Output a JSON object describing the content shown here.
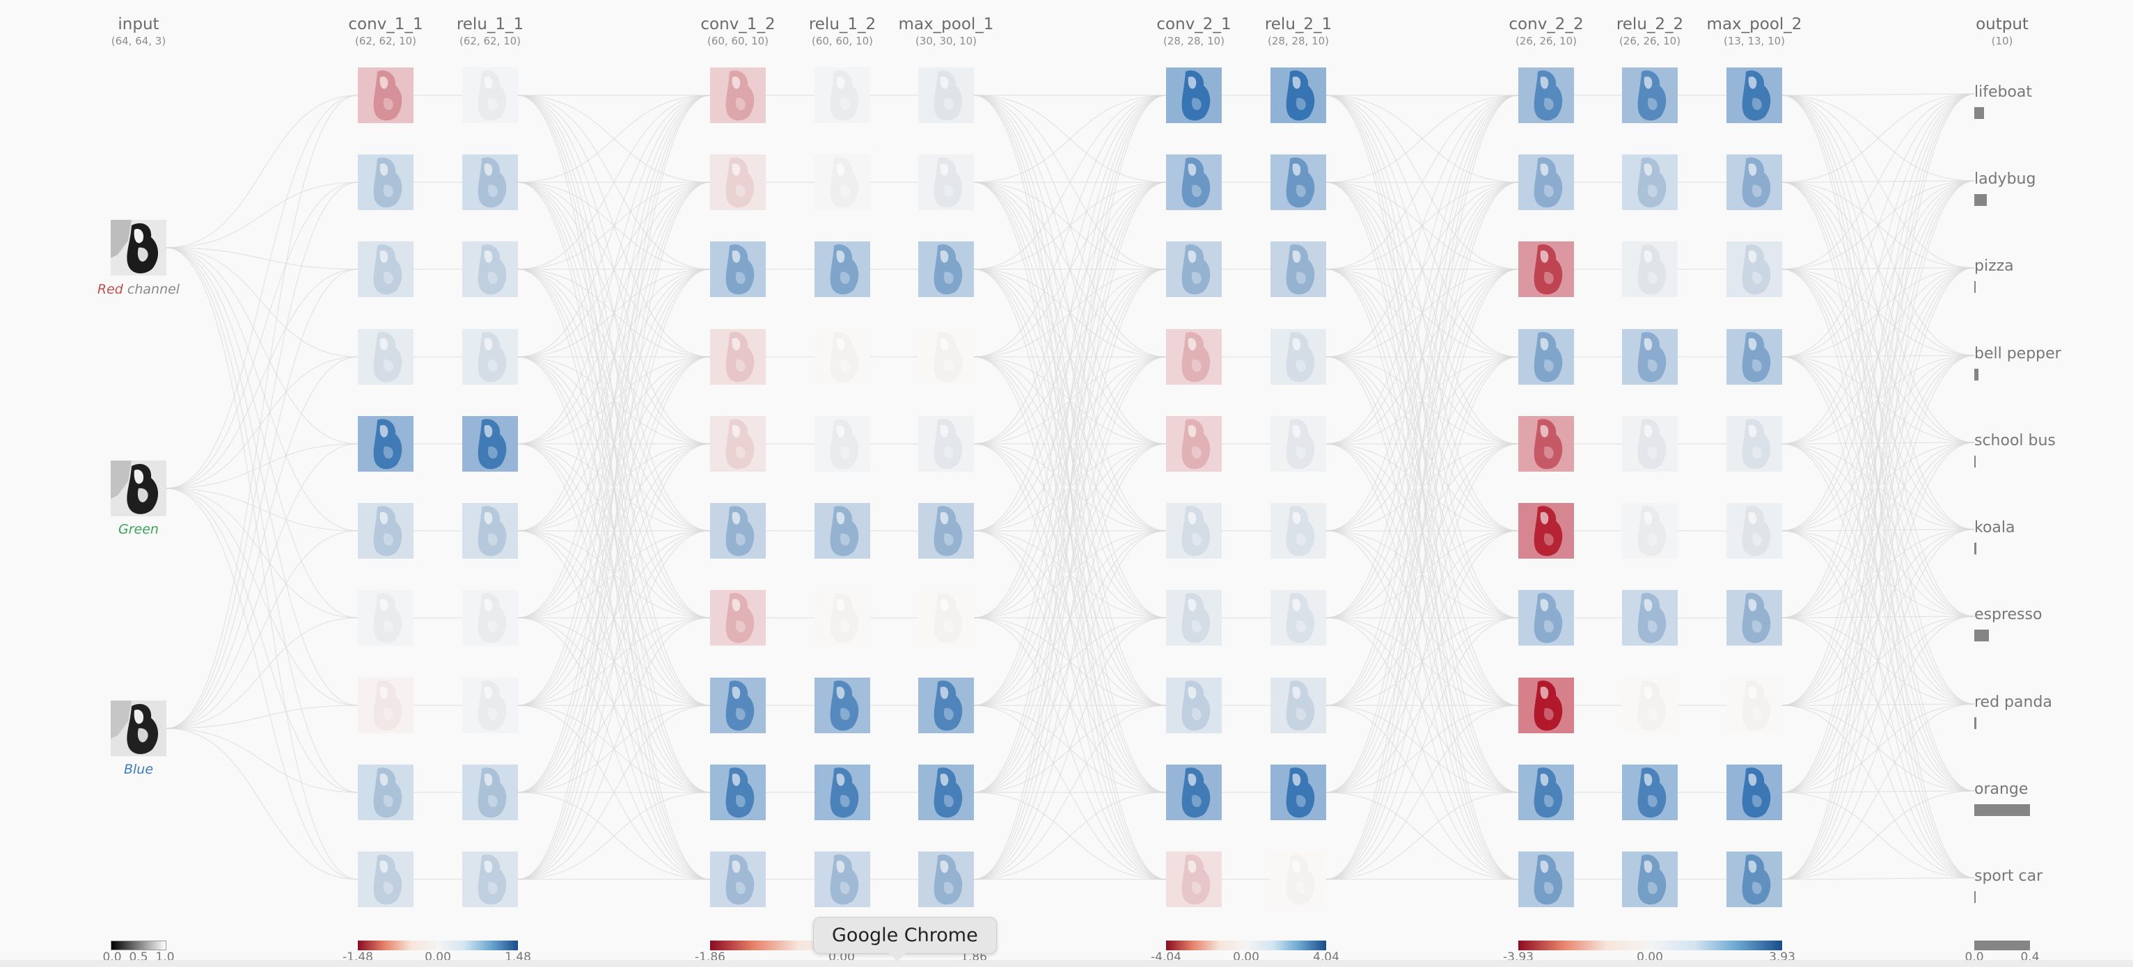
{
  "layers": [
    {
      "name": "input",
      "dims": "(64, 64, 3)"
    },
    {
      "name": "conv_1_1",
      "dims": "(62, 62, 10)"
    },
    {
      "name": "relu_1_1",
      "dims": "(62, 62, 10)"
    },
    {
      "name": "conv_1_2",
      "dims": "(60, 60, 10)"
    },
    {
      "name": "relu_1_2",
      "dims": "(60, 60, 10)"
    },
    {
      "name": "max_pool_1",
      "dims": "(30, 30, 10)"
    },
    {
      "name": "conv_2_1",
      "dims": "(28, 28, 10)"
    },
    {
      "name": "relu_2_1",
      "dims": "(28, 28, 10)"
    },
    {
      "name": "conv_2_2",
      "dims": "(26, 26, 10)"
    },
    {
      "name": "relu_2_2",
      "dims": "(26, 26, 10)"
    },
    {
      "name": "max_pool_2",
      "dims": "(13, 13, 10)"
    },
    {
      "name": "output",
      "dims": "(10)"
    }
  ],
  "input_channels": {
    "red_word": "Red",
    "red_suffix": " channel",
    "green": "Green",
    "blue": "Blue"
  },
  "outputs": [
    {
      "label": "lifeboat",
      "value": 0.07
    },
    {
      "label": "ladybug",
      "value": 0.09
    },
    {
      "label": "pizza",
      "value": 0.0
    },
    {
      "label": "bell pepper",
      "value": 0.03
    },
    {
      "label": "school bus",
      "value": 0.0
    },
    {
      "label": "koala",
      "value": 0.015
    },
    {
      "label": "espresso",
      "value": 0.105
    },
    {
      "label": "red panda",
      "value": 0.015
    },
    {
      "label": "orange",
      "value": 0.4
    },
    {
      "label": "sport car",
      "value": 0.005
    }
  ],
  "legends": {
    "input": {
      "ticks": [
        "0.0",
        "0.5",
        "1.0"
      ]
    },
    "block1": {
      "min": "-1.48",
      "mid": "0.00",
      "max": "1.48"
    },
    "block2": {
      "min": "-1.86",
      "mid": "0.00",
      "max": "1.86"
    },
    "block3": {
      "min": "-4.04",
      "mid": "0.00",
      "max": "4.04"
    },
    "block4": {
      "min": "-3.93",
      "mid": "0.00",
      "max": "3.93"
    },
    "output": {
      "min": "0.0",
      "max": "0.4"
    }
  },
  "activations": {
    "conv_1_1": [
      -0.45,
      0.35,
      0.25,
      0.15,
      0.85,
      0.3,
      0.05,
      -0.05,
      0.35,
      0.25
    ],
    "relu_1_1": [
      0.05,
      0.35,
      0.25,
      0.15,
      0.85,
      0.3,
      0.05,
      0.05,
      0.35,
      0.25
    ],
    "conv_1_2": [
      -0.35,
      -0.15,
      0.55,
      -0.2,
      -0.15,
      0.45,
      -0.3,
      0.75,
      0.8,
      0.4
    ],
    "relu_1_2": [
      0.05,
      0.02,
      0.55,
      0.0,
      0.05,
      0.45,
      0.0,
      0.75,
      0.8,
      0.4
    ],
    "max_pool_1": [
      0.1,
      0.08,
      0.55,
      0.0,
      0.08,
      0.45,
      0.0,
      0.78,
      0.82,
      0.45
    ],
    "conv_2_1": [
      0.9,
      0.65,
      0.45,
      -0.3,
      -0.3,
      0.15,
      0.15,
      0.25,
      0.85,
      -0.2
    ],
    "relu_2_1": [
      0.9,
      0.65,
      0.45,
      0.15,
      0.08,
      0.12,
      0.12,
      0.22,
      0.88,
      0.0
    ],
    "conv_2_2": [
      0.75,
      0.5,
      -0.8,
      0.55,
      -0.7,
      -0.95,
      0.5,
      -1.0,
      0.8,
      0.6
    ],
    "relu_2_2": [
      0.75,
      0.35,
      0.1,
      0.5,
      0.08,
      0.05,
      0.4,
      0.0,
      0.8,
      0.6
    ],
    "max_pool_2": [
      0.85,
      0.5,
      0.2,
      0.55,
      0.12,
      0.1,
      0.45,
      0.0,
      0.88,
      0.7
    ]
  },
  "tooltip": "Google Chrome",
  "colors": {
    "positive": "#2f6fb0",
    "negative": "#b2182b",
    "bar": "#858585",
    "edge": "#dadada"
  }
}
